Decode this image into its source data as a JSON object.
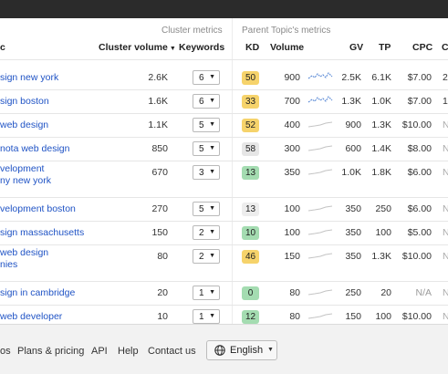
{
  "header": {
    "group_cluster": "Cluster metrics",
    "group_parent": "Parent Topic's metrics",
    "col_keyword": "c",
    "col_cluster_volume": "Cluster volume",
    "col_keywords": "Keywords",
    "col_kd": "KD",
    "col_volume": "Volume",
    "col_gv": "GV",
    "col_tp": "TP",
    "col_cpc": "CPC",
    "col_cut": "C",
    "sort_arrow": "▼"
  },
  "rows": [
    {
      "kw1": "sign new york",
      "kw2": "",
      "cvol": "2.6K",
      "kwcount": "6",
      "kd": "50",
      "kdcolor": "#f6d36b",
      "vol": "900",
      "spark": "trend-up",
      "gv": "2.5K",
      "tp": "6.1K",
      "cpc": "$7.00",
      "cut": "2"
    },
    {
      "kw1": "sign boston",
      "kw2": "",
      "cvol": "1.6K",
      "kwcount": "6",
      "kd": "33",
      "kdcolor": "#f6d36b",
      "vol": "700",
      "spark": "trend-up",
      "gv": "1.3K",
      "tp": "1.0K",
      "cpc": "$7.00",
      "cut": "1"
    },
    {
      "kw1": "web design",
      "kw2": "",
      "cvol": "1.1K",
      "kwcount": "5",
      "kd": "52",
      "kdcolor": "#f6d36b",
      "vol": "400",
      "spark": "flat",
      "gv": "900",
      "tp": "1.3K",
      "cpc": "$10.00",
      "cut": "N"
    },
    {
      "kw1": "nota web design",
      "kw2": "",
      "cvol": "850",
      "kwcount": "5",
      "kd": "58",
      "kdcolor": "#e6e6e6",
      "vol": "300",
      "spark": "flat",
      "gv": "600",
      "tp": "1.4K",
      "cpc": "$8.00",
      "cut": "N"
    },
    {
      "kw1": "velopment",
      "kw2": "ny new york",
      "cvol": "670",
      "kwcount": "3",
      "kd": "13",
      "kdcolor": "#a4dcb1",
      "vol": "350",
      "spark": "flat",
      "gv": "1.0K",
      "tp": "1.8K",
      "cpc": "$6.00",
      "cut": "N"
    },
    {
      "kw1": "velopment boston",
      "kw2": "",
      "cvol": "270",
      "kwcount": "5",
      "kd": "13",
      "kdcolor": "#ededed",
      "vol": "100",
      "spark": "flat",
      "gv": "350",
      "tp": "250",
      "cpc": "$6.00",
      "cut": "N"
    },
    {
      "kw1": "sign massachusetts",
      "kw2": "",
      "cvol": "150",
      "kwcount": "2",
      "kd": "10",
      "kdcolor": "#a4dcb1",
      "vol": "100",
      "spark": "flat",
      "gv": "350",
      "tp": "100",
      "cpc": "$5.00",
      "cut": "N"
    },
    {
      "kw1": "web design",
      "kw2": "nies",
      "cvol": "80",
      "kwcount": "2",
      "kd": "46",
      "kdcolor": "#f6d36b",
      "vol": "150",
      "spark": "flat",
      "gv": "350",
      "tp": "1.3K",
      "cpc": "$10.00",
      "cut": "N"
    },
    {
      "kw1": "sign in cambridge",
      "kw2": "",
      "cvol": "20",
      "kwcount": "1",
      "kd": "0",
      "kdcolor": "#a4dcb1",
      "vol": "80",
      "spark": "flat",
      "gv": "250",
      "tp": "20",
      "cpc": "N/A",
      "cut": "N"
    },
    {
      "kw1": "web developer",
      "kw2": "",
      "cvol": "10",
      "kwcount": "1",
      "kd": "12",
      "kdcolor": "#a4dcb1",
      "vol": "80",
      "spark": "flat",
      "gv": "150",
      "tp": "100",
      "cpc": "$10.00",
      "cut": "N"
    }
  ],
  "footer": {
    "link_cut": "os",
    "plans": "Plans & pricing",
    "api": "API",
    "help": "Help",
    "contact": "Contact us",
    "language": "English",
    "lang_arrow": "▼"
  },
  "colors": {
    "link": "#1f53c5",
    "kd_yellow": "#f6d36b",
    "kd_green": "#a4dcb1",
    "kd_gray": "#e6e6e6",
    "spark_blue": "#5b8ad6",
    "spark_gray": "#c4c4c4"
  }
}
